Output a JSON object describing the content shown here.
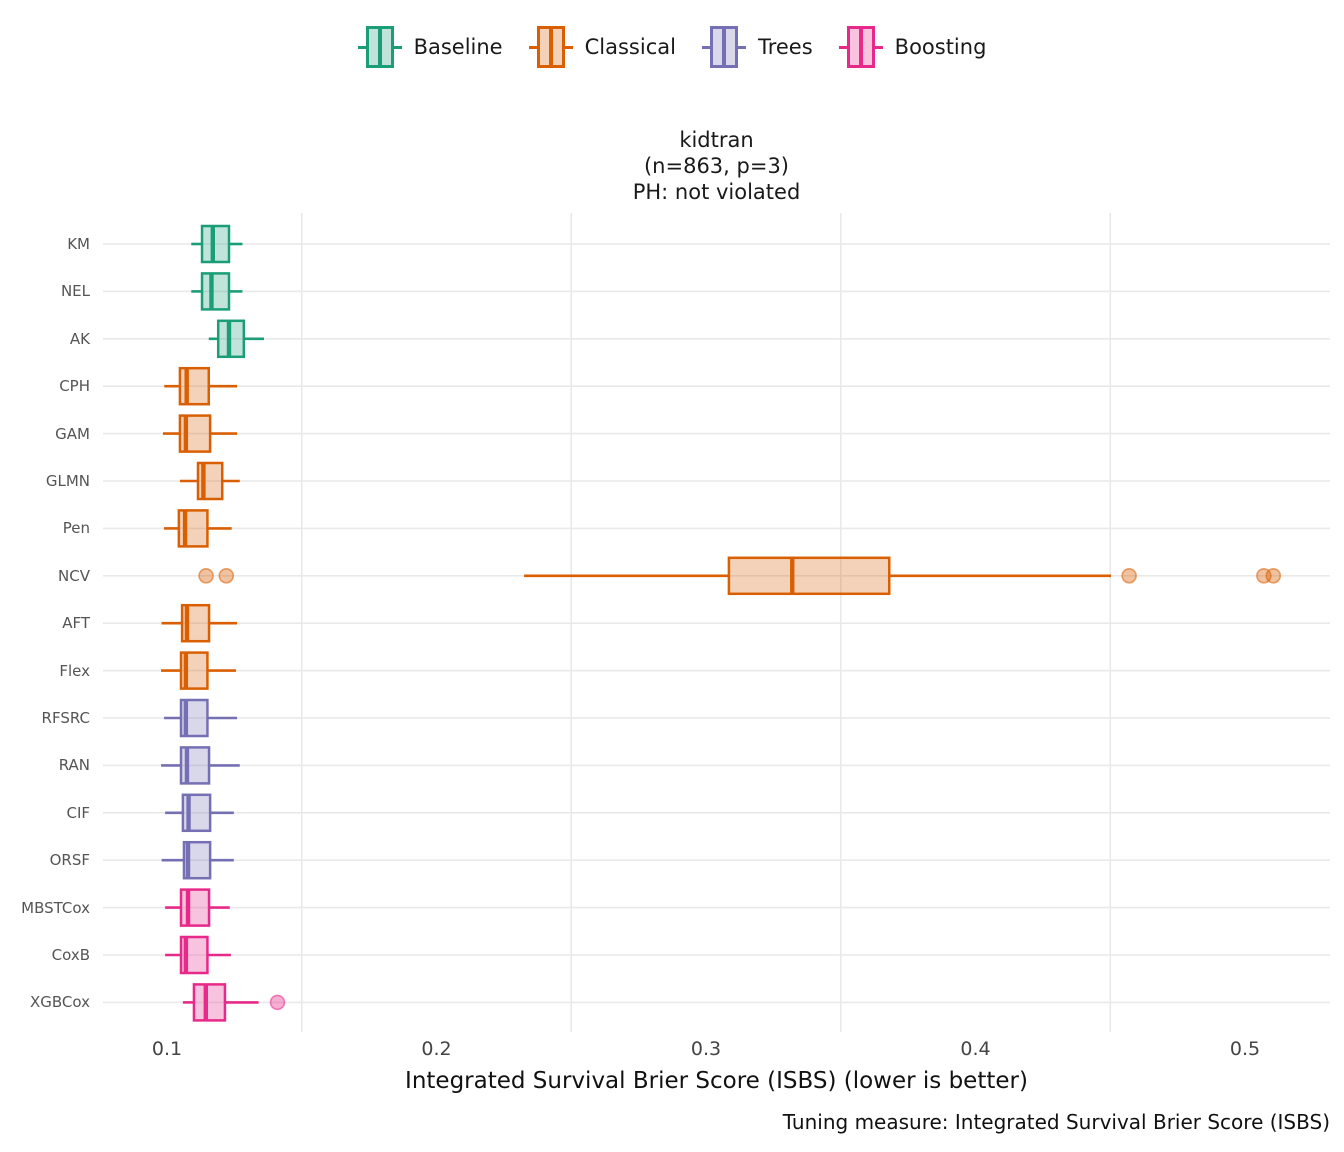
{
  "legend": {
    "items": [
      {
        "label": "Baseline",
        "color": "#1B9E77"
      },
      {
        "label": "Classical",
        "color": "#D95F02"
      },
      {
        "label": "Trees",
        "color": "#7570B3"
      },
      {
        "label": "Boosting",
        "color": "#E7298A"
      }
    ]
  },
  "title": {
    "line1": "kidtran",
    "line2": "(n=863, p=3)",
    "line3": "PH: not violated"
  },
  "axis": {
    "x_label": "Integrated Survival Brier Score (ISBS) (lower is better)"
  },
  "caption": "Tuning measure: Integrated Survival Brier Score (ISBS)",
  "chart_data": {
    "type": "boxplot",
    "orientation": "horizontal",
    "title": "kidtran (n=863, p=3) PH: not violated",
    "xlabel": "Integrated Survival Brier Score (ISBS) (lower is better)",
    "ylabel": "",
    "x_ticks": [
      "0.1",
      "0.2",
      "0.3",
      "0.4",
      "0.5"
    ],
    "x_tick_values": [
      0.1,
      0.2,
      0.3,
      0.4,
      0.5
    ],
    "xlim": [
      0.076,
      0.532
    ],
    "minor_gridlines": [
      0.15,
      0.25,
      0.35,
      0.45
    ],
    "grid": "on",
    "legend_position": "top",
    "groups": {
      "Baseline": "#1B9E77",
      "Classical": "#D95F02",
      "Trees": "#7570B3",
      "Boosting": "#E7298A"
    },
    "series": [
      {
        "model": "KM",
        "group": "Baseline",
        "whisker_low": 0.109,
        "q1": 0.113,
        "median": 0.117,
        "q3": 0.123,
        "whisker_high": 0.128,
        "outliers": []
      },
      {
        "model": "NEL",
        "group": "Baseline",
        "whisker_low": 0.109,
        "q1": 0.113,
        "median": 0.1165,
        "q3": 0.123,
        "whisker_high": 0.128,
        "outliers": []
      },
      {
        "model": "AK",
        "group": "Baseline",
        "whisker_low": 0.1155,
        "q1": 0.119,
        "median": 0.123,
        "q3": 0.1285,
        "whisker_high": 0.136,
        "outliers": []
      },
      {
        "model": "CPH",
        "group": "Classical",
        "whisker_low": 0.099,
        "q1": 0.1048,
        "median": 0.1073,
        "q3": 0.1155,
        "whisker_high": 0.126,
        "outliers": []
      },
      {
        "model": "GAM",
        "group": "Classical",
        "whisker_low": 0.0985,
        "q1": 0.1048,
        "median": 0.107,
        "q3": 0.116,
        "whisker_high": 0.126,
        "outliers": []
      },
      {
        "model": "GLMN",
        "group": "Classical",
        "whisker_low": 0.1048,
        "q1": 0.1115,
        "median": 0.1135,
        "q3": 0.1205,
        "whisker_high": 0.127,
        "outliers": []
      },
      {
        "model": "Pen",
        "group": "Classical",
        "whisker_low": 0.0989,
        "q1": 0.1044,
        "median": 0.1067,
        "q3": 0.115,
        "whisker_high": 0.124,
        "outliers": []
      },
      {
        "model": "NCV",
        "group": "Classical",
        "whisker_low": 0.2325,
        "q1": 0.3085,
        "median": 0.332,
        "q3": 0.368,
        "whisker_high": 0.4503,
        "outliers": [
          0.1145,
          0.122,
          0.457,
          0.507,
          0.5105
        ]
      },
      {
        "model": "AFT",
        "group": "Classical",
        "whisker_low": 0.098,
        "q1": 0.1056,
        "median": 0.1074,
        "q3": 0.1156,
        "whisker_high": 0.126,
        "outliers": []
      },
      {
        "model": "Flex",
        "group": "Classical",
        "whisker_low": 0.0978,
        "q1": 0.1052,
        "median": 0.107,
        "q3": 0.115,
        "whisker_high": 0.1256,
        "outliers": []
      },
      {
        "model": "RFSRC",
        "group": "Trees",
        "whisker_low": 0.0989,
        "q1": 0.1052,
        "median": 0.107,
        "q3": 0.115,
        "whisker_high": 0.126,
        "outliers": []
      },
      {
        "model": "RAN",
        "group": "Trees",
        "whisker_low": 0.0978,
        "q1": 0.1052,
        "median": 0.1074,
        "q3": 0.1156,
        "whisker_high": 0.127,
        "outliers": []
      },
      {
        "model": "CIF",
        "group": "Trees",
        "whisker_low": 0.0993,
        "q1": 0.1059,
        "median": 0.108,
        "q3": 0.116,
        "whisker_high": 0.1248,
        "outliers": []
      },
      {
        "model": "ORSF",
        "group": "Trees",
        "whisker_low": 0.098,
        "q1": 0.1063,
        "median": 0.1078,
        "q3": 0.116,
        "whisker_high": 0.1248,
        "outliers": []
      },
      {
        "model": "MBSTCox",
        "group": "Boosting",
        "whisker_low": 0.0993,
        "q1": 0.1052,
        "median": 0.1078,
        "q3": 0.1156,
        "whisker_high": 0.1233,
        "outliers": []
      },
      {
        "model": "CoxB",
        "group": "Boosting",
        "whisker_low": 0.0993,
        "q1": 0.1052,
        "median": 0.107,
        "q3": 0.115,
        "whisker_high": 0.1237,
        "outliers": []
      },
      {
        "model": "XGBCox",
        "group": "Boosting",
        "whisker_low": 0.1059,
        "q1": 0.11,
        "median": 0.1144,
        "q3": 0.1215,
        "whisker_high": 0.134,
        "outliers": [
          0.141
        ]
      }
    ],
    "style": {
      "grid_color": "#e9e9e9",
      "tick_label_color": "#444444",
      "y_label_color": "#555555",
      "title_color": "#1a1a1a",
      "fill_alpha": 0.28
    }
  }
}
